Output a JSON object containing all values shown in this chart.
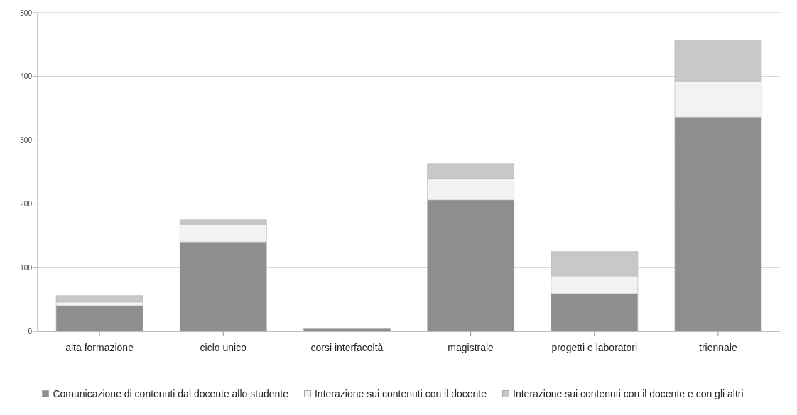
{
  "chart_data": {
    "type": "bar",
    "stacked": true,
    "categories": [
      "alta formazione",
      "ciclo unico",
      "corsi interfacoltà",
      "magistrale",
      "progetti e laboratori",
      "triennale"
    ],
    "series": [
      {
        "name": "Comunicazione di contenuti dal docente allo studente",
        "color": "#8e8e8e",
        "values": [
          40,
          140,
          4,
          206,
          59,
          336
        ]
      },
      {
        "name": "Interazione sui contenuti con il docente",
        "color": "#f2f2f2",
        "values": [
          6,
          28,
          0,
          34,
          28,
          57
        ]
      },
      {
        "name": "Interazione sui contenuti con il docente e con gli altri",
        "color": "#c8c8c8",
        "values": [
          10,
          7,
          0,
          23,
          38,
          64
        ]
      }
    ],
    "ylim": [
      0,
      500
    ],
    "yticks": [
      0,
      100,
      200,
      300,
      400,
      500
    ],
    "grid": "y",
    "legend": "bottom"
  }
}
